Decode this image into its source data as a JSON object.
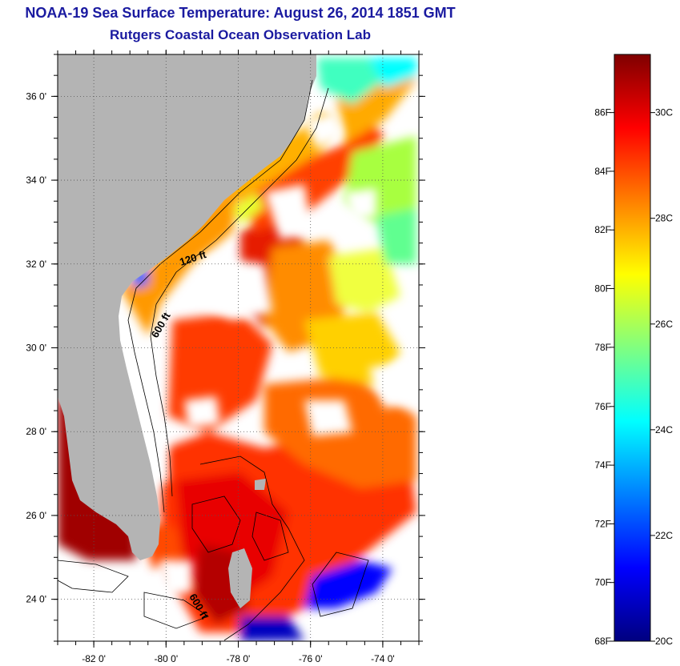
{
  "header": {
    "title": "NOAA-19 Sea Surface Temperature:  August 26, 2014 1851 GMT",
    "subtitle": "Rutgers Coastal Ocean Observation Lab"
  },
  "map": {
    "lon_range": [
      -83,
      -73
    ],
    "lat_range": [
      23,
      37
    ],
    "lon_ticks": [
      {
        "value": -82,
        "label": "-82 0'"
      },
      {
        "value": -80,
        "label": "-80 0'"
      },
      {
        "value": -78,
        "label": "-78 0'"
      },
      {
        "value": -76,
        "label": "-76 0'"
      },
      {
        "value": -74,
        "label": "-74 0'"
      }
    ],
    "lat_ticks": [
      {
        "value": 24,
        "label": "24 0'"
      },
      {
        "value": 26,
        "label": "26 0'"
      },
      {
        "value": 28,
        "label": "28 0'"
      },
      {
        "value": 30,
        "label": "30 0'"
      },
      {
        "value": 32,
        "label": "32 0'"
      },
      {
        "value": 34,
        "label": "34 0'"
      },
      {
        "value": 36,
        "label": "36 0'"
      }
    ],
    "contour_labels": [
      "120 ft",
      "600 ft",
      "600 ft"
    ],
    "colors": {
      "land": "#b4b4b4",
      "cloud": "#ffffff"
    }
  },
  "colorbar": {
    "range_c": [
      20,
      31.1
    ],
    "fahrenheit_ticks": [
      {
        "value_c": 20.0,
        "label": "68F"
      },
      {
        "value_c": 21.11,
        "label": "70F"
      },
      {
        "value_c": 22.22,
        "label": "72F"
      },
      {
        "value_c": 23.33,
        "label": "74F"
      },
      {
        "value_c": 24.44,
        "label": "76F"
      },
      {
        "value_c": 25.56,
        "label": "78F"
      },
      {
        "value_c": 26.67,
        "label": "80F"
      },
      {
        "value_c": 27.78,
        "label": "82F"
      },
      {
        "value_c": 28.89,
        "label": "84F"
      },
      {
        "value_c": 30.0,
        "label": "86F"
      }
    ],
    "celsius_ticks": [
      {
        "value_c": 20,
        "label": "20C"
      },
      {
        "value_c": 22,
        "label": "22C"
      },
      {
        "value_c": 24,
        "label": "24C"
      },
      {
        "value_c": 26,
        "label": "26C"
      },
      {
        "value_c": 28,
        "label": "28C"
      },
      {
        "value_c": 30,
        "label": "30C"
      }
    ],
    "gradient_stops": [
      "#00007f",
      "#0000ff",
      "#0080ff",
      "#00ffff",
      "#80ff80",
      "#ffff00",
      "#ff8000",
      "#ff0000",
      "#7f0000"
    ]
  }
}
